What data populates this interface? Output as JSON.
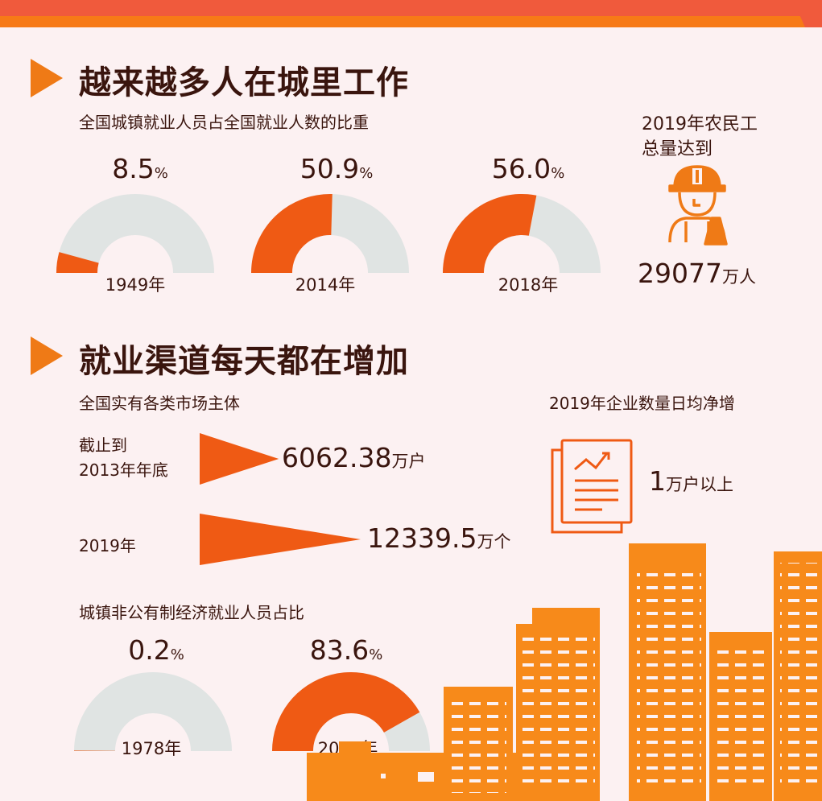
{
  "colors": {
    "orange": "#ef5a14",
    "gray": "#e0e4e3",
    "accent": "#ef7a16",
    "banner": "#f05a3c"
  },
  "section1": {
    "title": "越来越多人在城里工作",
    "subtitle": "全国城镇就业人员占全国就业人数的比重"
  },
  "migrant": {
    "label_line1": "2019年农民工",
    "label_line2": "总量达到",
    "value": "29077",
    "unit": "万人",
    "icon": "worker-icon"
  },
  "section2": {
    "title": "就业渠道每天都在增加",
    "market_subtitle": "全国实有各类市场主体",
    "enterprise_subtitle": "2019年企业数量日均净增",
    "enterprise_value": "1",
    "enterprise_unit": "万户以上",
    "enterprise_icon": "report-chart-icon",
    "nonpublic_subtitle": "城镇非公有制经济就业人员占比"
  },
  "chart_data": [
    {
      "type": "pie",
      "title": "全国城镇就业人员占全国就业人数的比重",
      "unit": "%",
      "series": [
        {
          "label": "1949年",
          "value": 8.5,
          "display": "8.5"
        },
        {
          "label": "2014年",
          "value": 50.9,
          "display": "50.9"
        },
        {
          "label": "2018年",
          "value": 56.0,
          "display": "56.0"
        }
      ]
    },
    {
      "type": "bar",
      "title": "全国实有各类市场主体",
      "categories": [
        "截止到 2013年年底",
        "2019年"
      ],
      "values": [
        6062.38,
        12339.5
      ],
      "labels": [
        {
          "line1": "截止到",
          "line2": "2013年年底",
          "value": "6062.38",
          "unit": "万户"
        },
        {
          "line1": "2019年",
          "line2": "",
          "value": "12339.5",
          "unit": "万个"
        }
      ]
    },
    {
      "type": "pie",
      "title": "城镇非公有制经济就业人员占比",
      "unit": "%",
      "series": [
        {
          "label": "1978年",
          "value": 0.2,
          "display": "0.2"
        },
        {
          "label": "2018年",
          "value": 83.6,
          "display": "83.6"
        }
      ]
    }
  ]
}
